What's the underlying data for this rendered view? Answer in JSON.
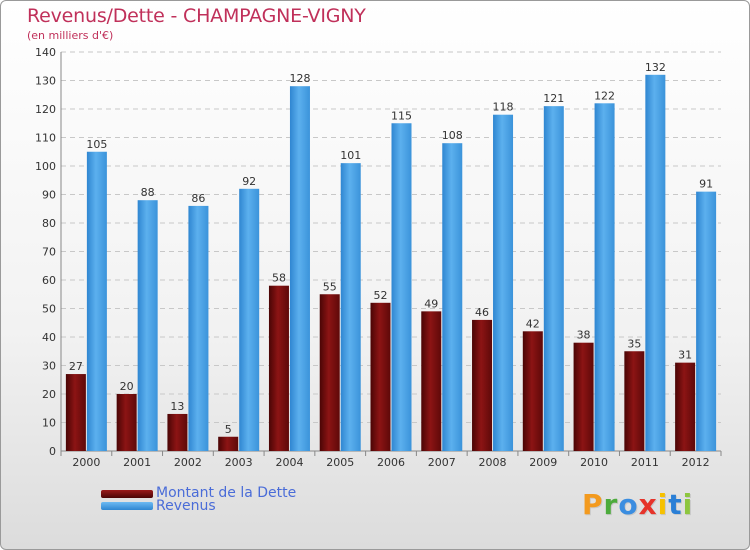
{
  "chart_data": {
    "type": "bar",
    "title": "Revenus/Dette - CHAMPAGNE-VIGNY",
    "subtitle": "(en milliers d'€)",
    "xlabel": "",
    "ylabel": "",
    "ylim": [
      0,
      140
    ],
    "yticks": [
      0,
      10,
      20,
      30,
      40,
      50,
      60,
      70,
      80,
      90,
      100,
      110,
      120,
      130,
      140
    ],
    "grid": true,
    "legend_position": "bottom-left",
    "categories": [
      "2000",
      "2001",
      "2002",
      "2003",
      "2004",
      "2005",
      "2006",
      "2007",
      "2008",
      "2009",
      "2010",
      "2011",
      "2012"
    ],
    "series": [
      {
        "name": "Montant de la Dette",
        "color": "#7a0e0e",
        "values": [
          27,
          20,
          13,
          5,
          58,
          55,
          52,
          49,
          46,
          42,
          38,
          35,
          31
        ]
      },
      {
        "name": "Revenus",
        "color": "#4da3e6",
        "values": [
          105,
          88,
          86,
          92,
          128,
          101,
          115,
          108,
          118,
          121,
          122,
          132,
          91
        ]
      }
    ]
  },
  "brand": {
    "letters": [
      "P",
      "r",
      "o",
      "x",
      "i",
      "t",
      "i"
    ],
    "colors": [
      "#f39a1e",
      "#4cab3c",
      "#3a8de0",
      "#e6332a",
      "#f6c100",
      "#2a7fd6",
      "#8dc63f"
    ]
  }
}
